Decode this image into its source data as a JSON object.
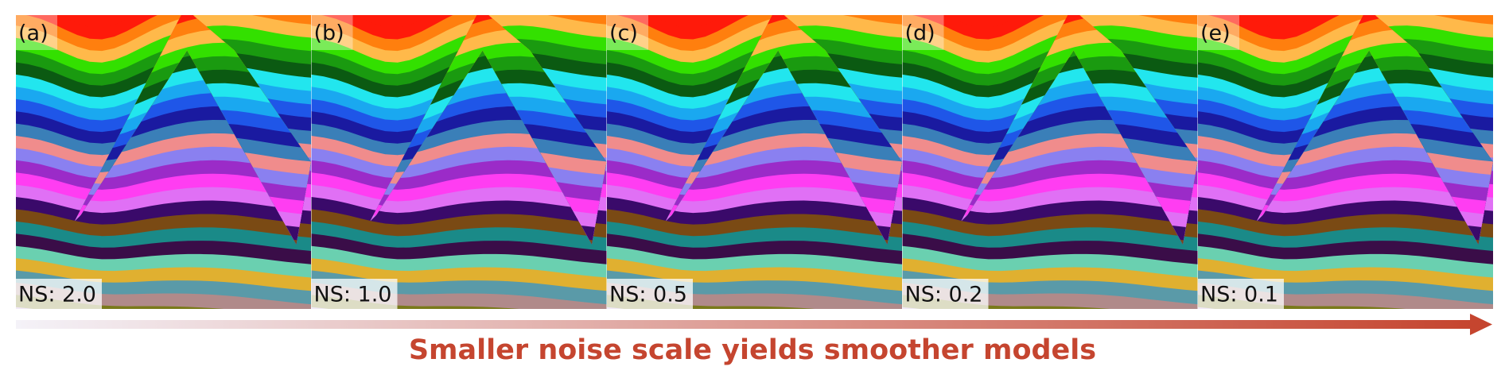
{
  "panels": [
    {
      "label": "(a)",
      "noise_scale": "NS: 2.0"
    },
    {
      "label": "(b)",
      "noise_scale": "NS: 1.0"
    },
    {
      "label": "(c)",
      "noise_scale": "NS: 0.5"
    },
    {
      "label": "(d)",
      "noise_scale": "NS: 0.2"
    },
    {
      "label": "(e)",
      "noise_scale": "NS: 0.1"
    }
  ],
  "caption": "Smaller noise scale yields smoother models"
}
